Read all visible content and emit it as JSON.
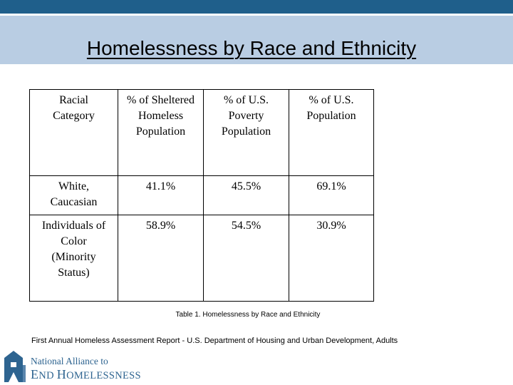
{
  "slide": {
    "title": "Homelessness by Race and Ethnicity"
  },
  "table": {
    "headers": [
      [
        "Racial",
        "Category"
      ],
      [
        "% of Sheltered",
        "Homeless",
        "Population"
      ],
      [
        "% of U.S.",
        "Poverty",
        "Population"
      ],
      [
        "% of U.S.",
        "Population"
      ]
    ],
    "rows": [
      {
        "category": [
          "White,",
          "Caucasian"
        ],
        "sheltered": "41.1%",
        "poverty": "45.5%",
        "population": "69.1%"
      },
      {
        "category": [
          "Individuals of",
          "Color",
          "(Minority",
          "Status)"
        ],
        "sheltered": "58.9%",
        "poverty": "54.5%",
        "population": "30.9%"
      }
    ]
  },
  "caption": "Table 1.  Homelessness by Race and Ethnicity",
  "source": "First Annual Homeless Assessment Report - U.S. Department of Housing and Urban Development, Adults",
  "logo": {
    "line1": "National Alliance to",
    "line2_cap1": "E",
    "line2_rest1": "ND ",
    "line2_cap2": "H",
    "line2_rest2": "OMELESSNESS",
    "icon": "house-icon",
    "color": "#2e6490"
  },
  "colors": {
    "top_bar": "#1f5f8b",
    "header_band": "#b9cde3"
  }
}
